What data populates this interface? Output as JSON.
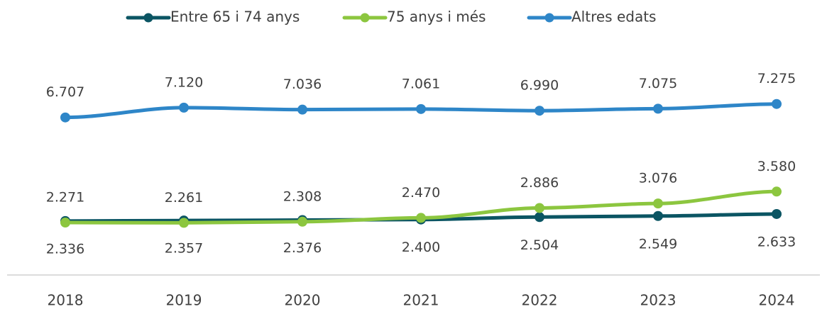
{
  "chart_data": {
    "type": "line",
    "categories": [
      "2018",
      "2019",
      "2020",
      "2021",
      "2022",
      "2023",
      "2024"
    ],
    "series": [
      {
        "name": "Entre 65 i 74 anys",
        "color": "#0b5563",
        "values": [
          2336,
          2357,
          2376,
          2400,
          2504,
          2549,
          2633
        ],
        "value_labels": [
          "2.336",
          "2.357",
          "2.376",
          "2.400",
          "2.504",
          "2.549",
          "2.633"
        ]
      },
      {
        "name": "75 anys i més",
        "color": "#8cc63f",
        "values": [
          2271,
          2261,
          2308,
          2470,
          2886,
          3076,
          3580
        ],
        "value_labels": [
          "2.271",
          "2.261",
          "2.308",
          "2.470",
          "2.886",
          "3.076",
          "3.580"
        ]
      },
      {
        "name": "Altres edats",
        "color": "#2e86c8",
        "values": [
          6707,
          7120,
          7036,
          7061,
          6990,
          7075,
          7275
        ],
        "value_labels": [
          "6.707",
          "7.120",
          "7.036",
          "7.061",
          "6.990",
          "7.075",
          "7.275"
        ]
      }
    ],
    "ylim": [
      0,
      9000
    ],
    "legend": "top"
  }
}
